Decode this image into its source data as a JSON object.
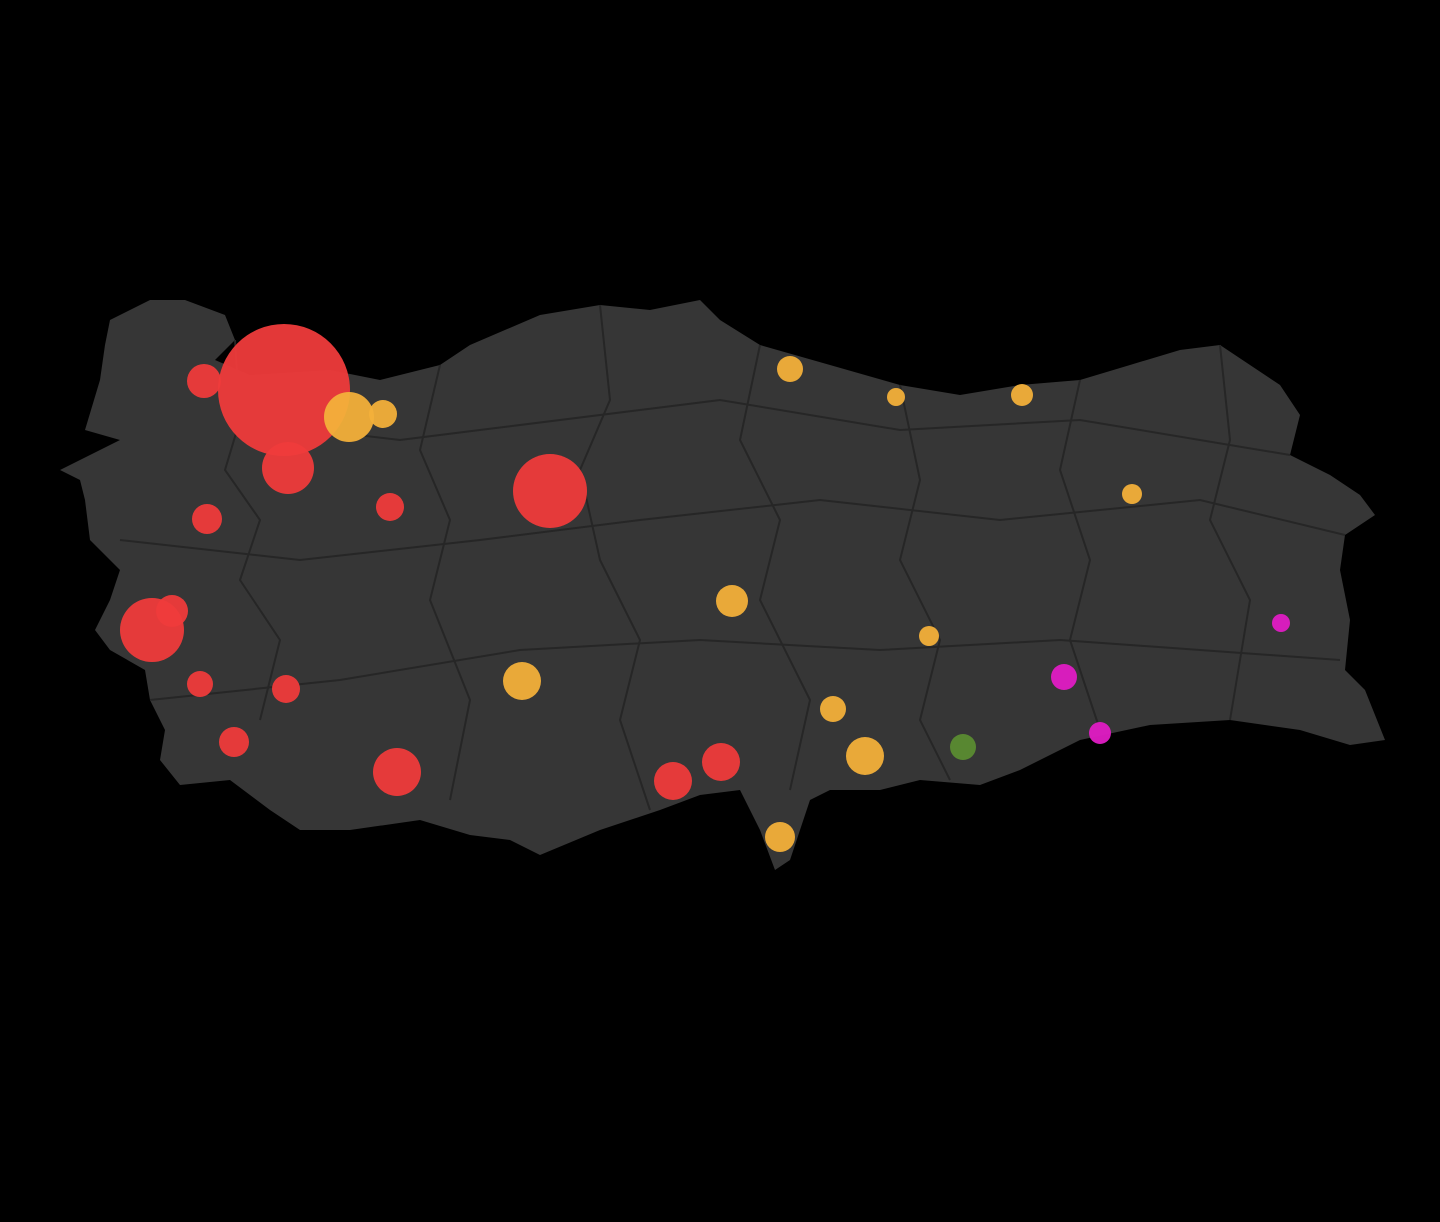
{
  "map": {
    "background_color": "#000000",
    "land_color": "#363636",
    "border_color": "#262626",
    "marker_colors": {
      "red": "#ef3b3b",
      "yellow": "#f3b03a",
      "magenta": "#e01cc4",
      "green": "#5b8c32"
    },
    "markers": [
      {
        "color": "red"
      },
      {
        "color": "red"
      },
      {
        "color": "red"
      },
      {
        "color": "red"
      },
      {
        "color": "red"
      },
      {
        "color": "red"
      },
      {
        "color": "red"
      },
      {
        "color": "red"
      },
      {
        "color": "red"
      },
      {
        "color": "red"
      },
      {
        "color": "red"
      },
      {
        "color": "red"
      },
      {
        "color": "red"
      },
      {
        "color": "red"
      },
      {
        "color": "yellow"
      },
      {
        "color": "yellow"
      },
      {
        "color": "yellow"
      },
      {
        "color": "yellow"
      },
      {
        "color": "yellow"
      },
      {
        "color": "yellow"
      },
      {
        "color": "yellow"
      },
      {
        "color": "yellow"
      },
      {
        "color": "yellow"
      },
      {
        "color": "yellow"
      },
      {
        "color": "yellow"
      },
      {
        "color": "yellow"
      },
      {
        "color": "magenta"
      },
      {
        "color": "magenta"
      },
      {
        "color": "magenta"
      },
      {
        "color": "green"
      }
    ]
  }
}
